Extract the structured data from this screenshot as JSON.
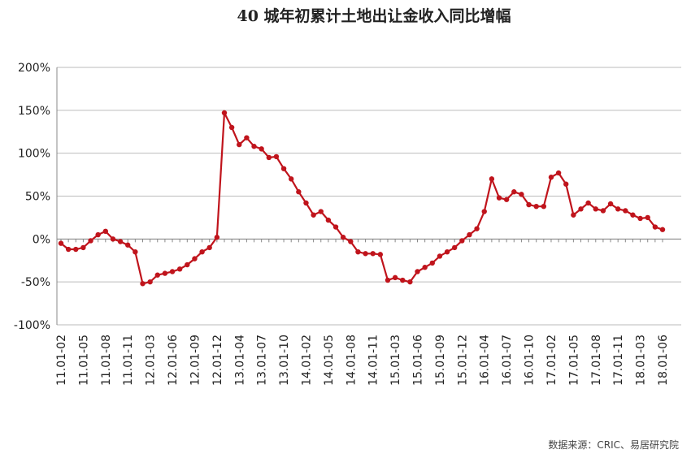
{
  "chart_data": {
    "type": "line",
    "title": "40 城年初累计土地出让金收入同比增幅",
    "source": "数据来源：CRIC、易居研究院",
    "categories": [
      "11.01-02",
      null,
      null,
      "11.01-05",
      null,
      null,
      "11.01-08",
      null,
      null,
      "11.01-11",
      null,
      null,
      "12.01-03",
      null,
      null,
      "12.01-06",
      null,
      null,
      "12.01-09",
      null,
      null,
      "12.01-12",
      null,
      null,
      "13.01-04",
      null,
      null,
      "13.01-07",
      null,
      null,
      "13.01-10",
      null,
      null,
      "14.01-02",
      null,
      null,
      "14.01-05",
      null,
      null,
      "14.01-08",
      null,
      null,
      "14.01-11",
      null,
      null,
      "15.01-03",
      null,
      null,
      "15.01-06",
      null,
      null,
      "15.01-09",
      null,
      null,
      "15.01-12",
      null,
      null,
      "16.01-04",
      null,
      null,
      "16.01-07",
      null,
      null,
      "16.01-10",
      null,
      null,
      "17.01-02",
      null,
      null,
      "17.01-05",
      null,
      null,
      "17.01-08",
      null,
      null,
      "17.01-11",
      null,
      null,
      "18.01-03",
      null,
      null,
      "18.01-06"
    ],
    "values": [
      -5,
      -12,
      -12,
      -10,
      -2,
      5,
      9,
      0,
      -3,
      -7,
      -15,
      -52,
      -50,
      -42,
      -40,
      -38,
      -35,
      -30,
      -23,
      -15,
      -10,
      2,
      147,
      130,
      110,
      118,
      108,
      105,
      95,
      96,
      82,
      70,
      55,
      42,
      28,
      32,
      22,
      14,
      2,
      -3,
      -15,
      -17,
      -17,
      -18,
      -48,
      -45,
      -48,
      -50,
      -38,
      -33,
      -28,
      -20,
      -15,
      -10,
      -2,
      5,
      12,
      32,
      70,
      48,
      46,
      55,
      52,
      40,
      38,
      38,
      72,
      77,
      64,
      28,
      35,
      42,
      35,
      33,
      41,
      35,
      33,
      28,
      24,
      25,
      14,
      11
    ],
    "color": "#c0141c",
    "ylim": [
      -100,
      200
    ],
    "yticks": [
      {
        "value": -100,
        "label": "-100%"
      },
      {
        "value": -50,
        "label": "-50%"
      },
      {
        "value": 0,
        "label": "0%"
      },
      {
        "value": 50,
        "label": "50%"
      },
      {
        "value": 100,
        "label": "100%"
      },
      {
        "value": 150,
        "label": "150%"
      },
      {
        "value": 200,
        "label": "200%"
      }
    ],
    "grid": true
  }
}
